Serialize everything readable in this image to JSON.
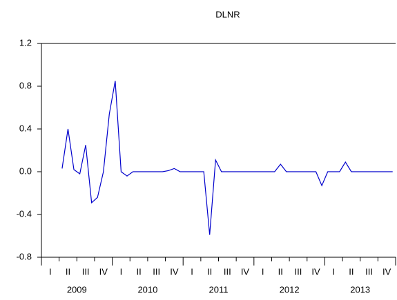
{
  "chart_data": {
    "type": "line",
    "title": "DLNR",
    "quarter_labels": [
      "I",
      "II",
      "III",
      "IV",
      "I",
      "II",
      "III",
      "IV",
      "I",
      "II",
      "III",
      "IV",
      "I",
      "II",
      "III",
      "IV",
      "I",
      "II",
      "III",
      "IV"
    ],
    "year_labels": [
      "2009",
      "2010",
      "2011",
      "2012",
      "2013"
    ],
    "color": "#0000cc",
    "values": [
      null,
      null,
      null,
      0.03,
      0.4,
      0.02,
      -0.02,
      0.25,
      -0.29,
      -0.24,
      0.0,
      0.54,
      0.85,
      0.0,
      -0.04,
      0.0,
      0.0,
      0.0,
      0.0,
      0.0,
      0.0,
      0.01,
      0.03,
      0.0,
      0.0,
      0.0,
      0.0,
      0.0,
      -0.59,
      0.11,
      0.0,
      0.0,
      0.0,
      0.0,
      0.0,
      0.0,
      0.0,
      0.0,
      0.0,
      0.0,
      0.07,
      0.0,
      0.0,
      0.0,
      0.0,
      0.0,
      0.0,
      -0.13,
      0.0,
      0.0,
      0.0,
      0.09,
      0.0,
      0.0,
      0.0,
      0.0,
      0.0,
      0.0,
      0.0,
      0.0
    ],
    "ylim": [
      -0.8,
      1.2
    ],
    "yticks": [
      -0.8,
      -0.4,
      {
        "value": 0,
        "label": "0.0"
      },
      0.4,
      0.8,
      1.2
    ]
  }
}
